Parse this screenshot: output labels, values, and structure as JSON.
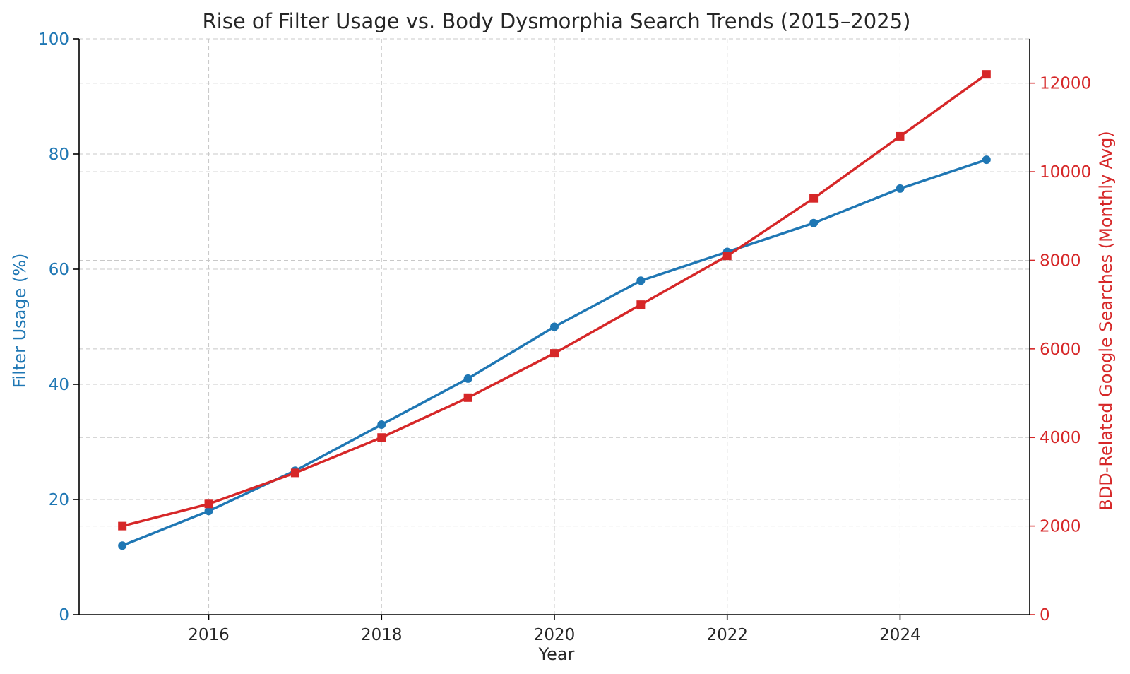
{
  "chart_data": {
    "type": "line",
    "title": "Rise of Filter Usage vs. Body Dysmorphia Search Trends (2015–2025)",
    "xlabel": "Year",
    "ylabel_left": "Filter Usage (%)",
    "ylabel_right": "BDD-Related Google Searches (Monthly Avg)",
    "x": [
      2015,
      2016,
      2017,
      2018,
      2019,
      2020,
      2021,
      2022,
      2023,
      2024,
      2025
    ],
    "xlim": [
      2014.5,
      2025.5
    ],
    "x_ticks": [
      2016,
      2018,
      2020,
      2022,
      2024
    ],
    "x_tick_labels": [
      "2016",
      "2018",
      "2020",
      "2022",
      "2024"
    ],
    "ylim_left": [
      0,
      100
    ],
    "y_ticks_left": [
      0,
      20,
      40,
      60,
      80,
      100
    ],
    "y_tick_labels_left": [
      "0",
      "20",
      "40",
      "60",
      "80",
      "100"
    ],
    "ylim_right": [
      0,
      13000
    ],
    "y_ticks_right": [
      0,
      2000,
      4000,
      6000,
      8000,
      10000,
      12000
    ],
    "y_tick_labels_right": [
      "0",
      "2000",
      "4000",
      "6000",
      "8000",
      "10000",
      "12000"
    ],
    "grid": true,
    "series": [
      {
        "name": "Filter Usage (%)",
        "axis": "left",
        "color": "#1f77b4",
        "marker": "circle",
        "values": [
          12,
          18,
          25,
          33,
          41,
          50,
          58,
          63,
          68,
          74,
          79
        ]
      },
      {
        "name": "BDD-Related Google Searches (Monthly Avg)",
        "axis": "right",
        "color": "#d62728",
        "marker": "square",
        "values": [
          2000,
          2500,
          3200,
          4000,
          4900,
          5900,
          7000,
          8100,
          9400,
          10800,
          12200
        ]
      }
    ]
  }
}
